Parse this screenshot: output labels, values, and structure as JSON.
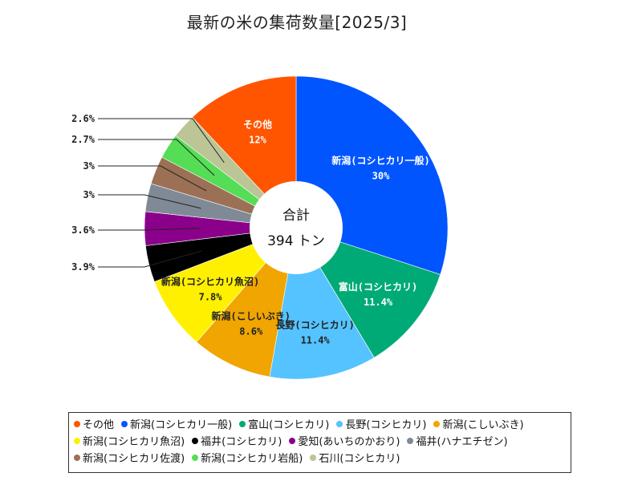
{
  "chart_data": {
    "type": "pie",
    "title": "最新の米の集荷数量[2025/3]",
    "center_label": "合計",
    "center_value": "394 トン",
    "legend_position": "bottom",
    "slices": [
      {
        "name": "新潟(コシヒカリ一般)",
        "value": 30,
        "label": "30%",
        "color": "#0055ff"
      },
      {
        "name": "富山(コシヒカリ)",
        "value": 11.4,
        "label": "11.4%",
        "color": "#00aa77"
      },
      {
        "name": "長野(コシヒカリ)",
        "value": 11.4,
        "label": "11.4%",
        "color": "#55c3ff"
      },
      {
        "name": "新潟(こしいぶき)",
        "value": 8.6,
        "label": "8.6%",
        "color": "#f0a500"
      },
      {
        "name": "新潟(コシヒカリ魚沼)",
        "value": 7.8,
        "label": "7.8%",
        "color": "#fff000"
      },
      {
        "name": "福井(コシヒカリ)",
        "value": 3.9,
        "label": "3.9%",
        "color": "#000000"
      },
      {
        "name": "愛知(あいちのかおり)",
        "value": 3.6,
        "label": "3.6%",
        "color": "#8b008b"
      },
      {
        "name": "福井(ハナエチゼン)",
        "value": 3,
        "label": "3%",
        "color": "#808a96"
      },
      {
        "name": "新潟(コシヒカリ佐渡)",
        "value": 3,
        "label": "3%",
        "color": "#9c7055"
      },
      {
        "name": "新潟(コシヒカリ岩船)",
        "value": 2.7,
        "label": "2.7%",
        "color": "#55dd55"
      },
      {
        "name": "石川(コシヒカリ)",
        "value": 2.6,
        "label": "2.6%",
        "color": "#bbc596"
      },
      {
        "name": "その他",
        "value": 12,
        "label": "12%",
        "color": "#ff5500"
      }
    ],
    "legend_order": [
      "その他",
      "新潟(コシヒカリ一般)",
      "富山(コシヒカリ)",
      "長野(コシヒカリ)",
      "新潟(こしいぶき)",
      "新潟(コシヒカリ魚沼)",
      "福井(コシヒカリ)",
      "愛知(あいちのかおり)",
      "福井(ハナエチゼン)",
      "新潟(コシヒカリ佐渡)",
      "新潟(コシヒカリ岩船)",
      "石川(コシヒカリ)"
    ]
  }
}
